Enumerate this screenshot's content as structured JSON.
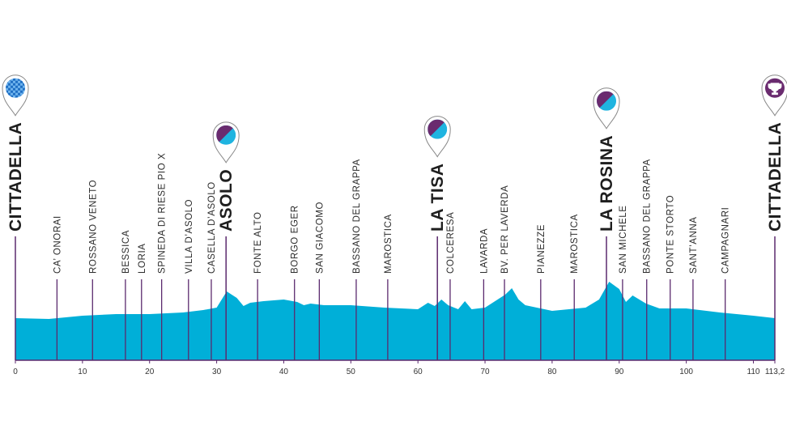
{
  "chart_data": {
    "type": "area",
    "color": "#00afd8",
    "line_color": "#5b2a6e",
    "x": [
      0,
      5,
      10,
      15,
      20,
      25,
      28,
      30,
      31.5,
      33,
      34,
      35,
      37,
      40,
      42,
      43,
      44,
      46,
      50,
      55,
      60,
      61.5,
      62.5,
      63.5,
      64.5,
      66,
      67,
      68,
      70,
      73,
      74,
      75,
      76,
      80,
      85,
      87,
      88.5,
      90,
      91,
      92,
      94,
      96,
      100,
      105,
      110,
      113.2
    ],
    "values": [
      104,
      102,
      110,
      114,
      114,
      118,
      124,
      130,
      170,
      154,
      134,
      142,
      146,
      150,
      144,
      136,
      140,
      136,
      136,
      130,
      126,
      142,
      134,
      150,
      136,
      126,
      146,
      126,
      130,
      162,
      178,
      150,
      136,
      122,
      130,
      150,
      194,
      176,
      144,
      160,
      140,
      128,
      128,
      118,
      110,
      104
    ],
    "xlim": [
      0,
      113.2
    ],
    "ylim": [
      0,
      400
    ],
    "xticks": [
      0,
      10,
      20,
      30,
      40,
      50,
      60,
      70,
      80,
      90,
      100,
      110,
      {
        "value": 113.2,
        "label": "113,2"
      }
    ],
    "landmarks": [
      {
        "name": "CITTADELLA",
        "km": 0
      },
      {
        "name": "ASOLO",
        "km": 31.4
      },
      {
        "name": "LA TISA",
        "km": 62.9
      },
      {
        "name": "LA ROSINA",
        "km": 88.1
      },
      {
        "name": "CITTADELLA",
        "km": 113.2
      }
    ],
    "waypoints": [
      {
        "name": "CA’ ONORAI",
        "km": 6.2
      },
      {
        "name": "ROSSANO VENETO",
        "km": 11.5
      },
      {
        "name": "BESSICA",
        "km": 16.4
      },
      {
        "name": "LORIA",
        "km": 18.8
      },
      {
        "name": "SPINEDA DI RIESE PIO X",
        "km": 21.8
      },
      {
        "name": "VILLA D’ASOLO",
        "km": 25.8
      },
      {
        "name": "CASELLA D’ASOLO",
        "km": 29.2
      },
      {
        "name": "FONTE ALTO",
        "km": 36.1
      },
      {
        "name": "BORGO EGER",
        "km": 41.6
      },
      {
        "name": "SAN GIACOMO",
        "km": 45.3
      },
      {
        "name": "BASSANO DEL GRAPPA",
        "km": 50.8
      },
      {
        "name": "MAROSTICA",
        "km": 55.5
      },
      {
        "name": "COLCERESA",
        "km": 64.8
      },
      {
        "name": "LAVARDA",
        "km": 69.8
      },
      {
        "name": "BV. PER LAVERDA",
        "km": 72.9
      },
      {
        "name": "PIANEZZE",
        "km": 78.3
      },
      {
        "name": "MAROSTICA",
        "km": 83.3
      },
      {
        "name": "SAN MICHELE",
        "km": 90.5
      },
      {
        "name": "BASSANO DEL GRAPPA",
        "km": 94.1
      },
      {
        "name": "PONTE STORTO",
        "km": 97.6
      },
      {
        "name": "SANT’ANNA",
        "km": 101.0
      },
      {
        "name": "CAMPAGNARI",
        "km": 105.8
      }
    ]
  }
}
